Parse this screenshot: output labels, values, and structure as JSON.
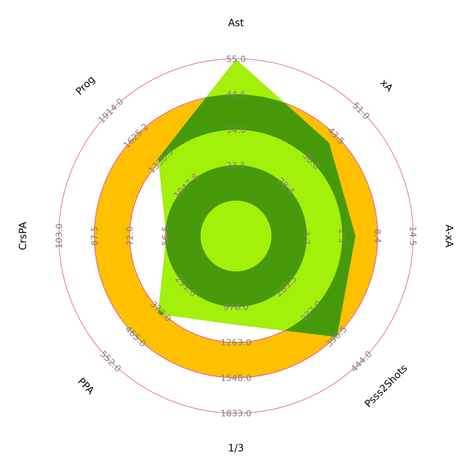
{
  "chart_data": {
    "type": "radar",
    "title": "",
    "axes": [
      {
        "name": "Ast",
        "min": 13.0,
        "max": 55.0,
        "ticks": [
          "55.0",
          "44.5",
          "34.0",
          "23.5"
        ]
      },
      {
        "name": "xA",
        "min": 25.0,
        "max": 55.0,
        "ticks": [
          "51.0",
          "43.5",
          "36.0",
          "28.4"
        ]
      },
      {
        "name": "A-xA",
        "min": -1.8,
        "max": 16.0,
        "ticks": [
          "14.5",
          "8.4",
          "2.3",
          "-3.7"
        ]
      },
      {
        "name": "Psss2Shots",
        "min": 180.0,
        "max": 480.0,
        "ticks": [
          "444.0",
          "390.5",
          "337.0",
          "283.5"
        ]
      },
      {
        "name": "1/3",
        "min": 693.0,
        "max": 1833.0,
        "ticks": [
          "1833.0",
          "1548.0",
          "1263.0",
          "978.0"
        ]
      },
      {
        "name": "PPA",
        "min": 117.0,
        "max": 552.0,
        "ticks": [
          "552.0",
          "465.0",
          "378.0",
          "291.0"
        ]
      },
      {
        "name": "CrsPA",
        "min": 41.0,
        "max": 103.0,
        "ticks": [
          "103.0",
          "87.5",
          "72.0",
          "56.5"
        ]
      },
      {
        "name": "Prog",
        "min": 758.0,
        "max": 1914.0,
        "ticks": [
          "1914.0",
          "1625.2",
          "1336.5",
          "1047.8"
        ]
      }
    ],
    "series": [
      {
        "name": "",
        "values": [
          54.9,
          47.3,
          10.2,
          421.6,
          1263.6,
          387.3,
          65.3,
          1475.0
        ]
      }
    ],
    "colors": {
      "ring_dark": "#ffc000",
      "ring_light": "#ffffff",
      "ring_edge": "#e040a0",
      "polygon": "#469a0a",
      "polygon_ring_dark": "#469a0a",
      "polygon_ring_light": "#a3f00a",
      "axis_label": "#000000",
      "tick_label": "#7f7f7f"
    },
    "grid": false,
    "legend": "none"
  }
}
